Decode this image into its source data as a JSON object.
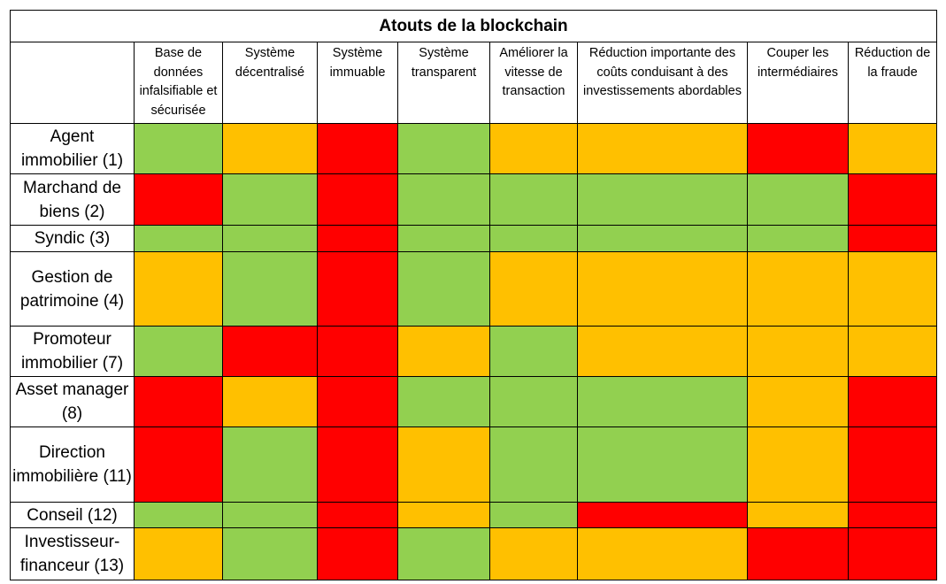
{
  "colors": {
    "green": "#92D050",
    "orange": "#FFC000",
    "red": "#FF0000"
  },
  "chart_data": {
    "type": "heatmap",
    "title": "Atouts de la blockchain",
    "columns": [
      "Base de données infalsifiable et sécurisée",
      "Système décentralisé",
      "Système immuable",
      "Système transparent",
      "Améliorer la vitesse de transaction",
      "Réduction importante des coûts conduisant à des investissements abordables",
      "Couper les intermédiaires",
      "Réduction de la fraude"
    ],
    "rows": [
      "Agent immobilier (1)",
      "Marchand de biens (2)",
      "Syndic (3)",
      "Gestion de patrimoine (4)",
      "Promoteur immobilier (7)",
      "Asset manager (8)",
      "Direction immobilière (11)",
      "Conseil (12)",
      "Investisseur-financeur (13)"
    ],
    "values": [
      [
        "green",
        "orange",
        "red",
        "green",
        "orange",
        "orange",
        "red",
        "orange"
      ],
      [
        "red",
        "green",
        "red",
        "green",
        "green",
        "green",
        "green",
        "red"
      ],
      [
        "green",
        "green",
        "red",
        "green",
        "green",
        "green",
        "green",
        "red"
      ],
      [
        "orange",
        "green",
        "red",
        "green",
        "orange",
        "orange",
        "orange",
        "orange"
      ],
      [
        "green",
        "red",
        "red",
        "orange",
        "green",
        "orange",
        "orange",
        "orange"
      ],
      [
        "red",
        "orange",
        "red",
        "green",
        "green",
        "green",
        "orange",
        "red"
      ],
      [
        "red",
        "green",
        "red",
        "orange",
        "green",
        "green",
        "orange",
        "red"
      ],
      [
        "green",
        "green",
        "red",
        "orange",
        "green",
        "red",
        "orange",
        "red"
      ],
      [
        "orange",
        "green",
        "red",
        "green",
        "orange",
        "orange",
        "red",
        "red"
      ]
    ]
  }
}
